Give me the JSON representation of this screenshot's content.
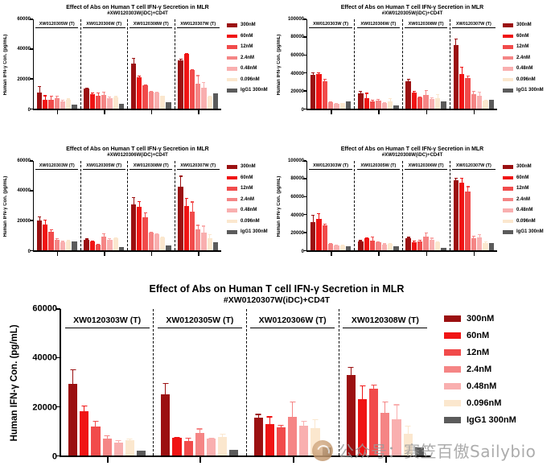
{
  "watermark": {
    "text": "公众号：赛笠百傲Sailybio",
    "logo": "circular-brand-logo"
  },
  "chart_data": [
    {
      "type": "bar",
      "title": "Effect of Abs on Human T cell IFN-γ Secretion in MLR",
      "subtitle": "#XW0120303W(iDC)+CD4T",
      "ylabel": "Human IFN-γ Con. (pg/mL)",
      "ylim": [
        0,
        60000
      ],
      "yticks": [
        0,
        20000,
        40000,
        60000
      ],
      "grid": false,
      "legend_position": "right",
      "categories": [
        "XW0120305W (T)",
        "XW0120306W (T)",
        "XW0120308W (T)",
        "XW0120307W (T)"
      ],
      "series": [
        {
          "name": "300nM",
          "color": "#9B1011",
          "values": [
            11000,
            13500,
            30500,
            32500
          ],
          "errors": [
            4000,
            700,
            3800,
            1200
          ]
        },
        {
          "name": "60nM",
          "color": "#F01414",
          "values": [
            6000,
            10000,
            21000,
            37000
          ],
          "errors": [
            3000,
            900,
            1200,
            400
          ]
        },
        {
          "name": "12nM",
          "color": "#F14B4B",
          "values": [
            6000,
            8500,
            15500,
            26200
          ],
          "errors": [
            2500,
            2200,
            900,
            500
          ]
        },
        {
          "name": "2.4nM",
          "color": "#F58585",
          "values": [
            7000,
            9200,
            11500,
            17000
          ],
          "errors": [
            1500,
            2300,
            600,
            5500
          ]
        },
        {
          "name": "0.48nM",
          "color": "#F9AFAF",
          "values": [
            5000,
            6800,
            11000,
            14000
          ],
          "errors": [
            1200,
            1500,
            500,
            3800
          ]
        },
        {
          "name": "0.096nM",
          "color": "#FBE7CE",
          "values": [
            6000,
            7500,
            8500,
            8000
          ],
          "errors": [
            800,
            900,
            400,
            700
          ]
        },
        {
          "name": "IgG1 300nM",
          "color": "#5B5B5B",
          "values": [
            2800,
            3200,
            4500,
            10200
          ],
          "errors": [
            0,
            0,
            0,
            0
          ]
        }
      ]
    },
    {
      "type": "bar",
      "title": "Effect of Abs on Human T cell IFN-γ Secretion in MLR",
      "subtitle": "#XW0120305W(iDC)+CD4T",
      "ylabel": "Human IFN-γ Con. (pg/mL)",
      "ylim": [
        0,
        100000
      ],
      "yticks": [
        0,
        20000,
        40000,
        60000,
        80000,
        100000
      ],
      "grid": false,
      "legend_position": "right",
      "categories": [
        "XW0120303W (T)",
        "XW0120306W (T)",
        "XW0120308W (T)",
        "XW0120307W (T)"
      ],
      "series": [
        {
          "name": "300nM",
          "color": "#9B1011",
          "values": [
            38000,
            17500,
            30500,
            71000
          ],
          "errors": [
            2800,
            2200,
            2700,
            7500
          ]
        },
        {
          "name": "60nM",
          "color": "#F01414",
          "values": [
            39000,
            11800,
            18200,
            39000
          ],
          "errors": [
            1800,
            5800,
            1600,
            7800
          ]
        },
        {
          "name": "12nM",
          "color": "#F14B4B",
          "values": [
            31000,
            8500,
            12800,
            33800
          ],
          "errors": [
            2200,
            1600,
            1100,
            3600
          ]
        },
        {
          "name": "2.4nM",
          "color": "#F58585",
          "values": [
            7000,
            9200,
            15500,
            16500
          ],
          "errors": [
            1200,
            1500,
            5200,
            3200
          ]
        },
        {
          "name": "0.48nM",
          "color": "#F9AFAF",
          "values": [
            5200,
            6500,
            11000,
            14200
          ],
          "errors": [
            800,
            1000,
            1600,
            4800
          ]
        },
        {
          "name": "0.096nM",
          "color": "#FBE7CE",
          "values": [
            6000,
            8000,
            12000,
            8600
          ],
          "errors": [
            700,
            3800,
            4600,
            1100
          ]
        },
        {
          "name": "IgG1 300nM",
          "color": "#5B5B5B",
          "values": [
            8000,
            3800,
            8000,
            9500
          ],
          "errors": [
            0,
            0,
            0,
            0
          ]
        }
      ]
    },
    {
      "type": "bar",
      "title": "Effect of Abs on Human T cell IFN-γ Secretion in MLR",
      "subtitle": "#XW0120306W(iDC)+CD4T",
      "ylabel": "Human IFN-γ Con. (pg/mL)",
      "ylim": [
        0,
        60000
      ],
      "yticks": [
        0,
        20000,
        40000,
        60000
      ],
      "grid": false,
      "legend_position": "right",
      "categories": [
        "XW0120303W (T)",
        "XW0120305W (T)",
        "XW0120308W (T)",
        "XW0120307W (T)"
      ],
      "series": [
        {
          "name": "300nM",
          "color": "#9B1011",
          "values": [
            20000,
            7000,
            30600,
            42500
          ],
          "errors": [
            2600,
            900,
            5200,
            7600
          ]
        },
        {
          "name": "60nM",
          "color": "#F01414",
          "values": [
            17400,
            5800,
            29400,
            30000
          ],
          "errors": [
            3200,
            700,
            3600,
            5200
          ]
        },
        {
          "name": "12nM",
          "color": "#F14B4B",
          "values": [
            12400,
            3600,
            22400,
            26000
          ],
          "errors": [
            1600,
            500,
            3100,
            6800
          ]
        },
        {
          "name": "2.4nM",
          "color": "#F58585",
          "values": [
            7000,
            9400,
            12000,
            14000
          ],
          "errors": [
            1300,
            2100,
            600,
            3100
          ]
        },
        {
          "name": "0.48nM",
          "color": "#F9AFAF",
          "values": [
            5400,
            6900,
            11000,
            12000
          ],
          "errors": [
            900,
            1300,
            500,
            4600
          ]
        },
        {
          "name": "0.096nM",
          "color": "#FBE7CE",
          "values": [
            6100,
            8000,
            8600,
            8200
          ],
          "errors": [
            700,
            900,
            400,
            2600
          ]
        },
        {
          "name": "IgG1 300nM",
          "color": "#5B5B5B",
          "values": [
            5700,
            2000,
            3000,
            5500
          ],
          "errors": [
            0,
            0,
            0,
            0
          ]
        }
      ]
    },
    {
      "type": "bar",
      "title": "Effect of Abs on Human T cell IFN-γ Secretion in MLR",
      "subtitle": "#XW0120308W(iDC)+CD4T",
      "ylabel": "Human IFN-γ Con. (pg/mL)",
      "ylim": [
        0,
        100000
      ],
      "yticks": [
        0,
        20000,
        40000,
        60000,
        80000,
        100000
      ],
      "grid": false,
      "legend_position": "right",
      "categories": [
        "XW0120303W (T)",
        "XW0120305W (T)",
        "XW0120306W (T)",
        "XW0120307W (T)"
      ],
      "series": [
        {
          "name": "300nM",
          "color": "#9B1011",
          "values": [
            31500,
            10200,
            13400,
            78000
          ],
          "errors": [
            8500,
            1100,
            1600,
            3200
          ]
        },
        {
          "name": "60nM",
          "color": "#F01414",
          "values": [
            35000,
            13200,
            9200,
            76000
          ],
          "errors": [
            6200,
            1600,
            1900,
            5200
          ]
        },
        {
          "name": "12nM",
          "color": "#F14B4B",
          "values": [
            28000,
            11000,
            10200,
            66000
          ],
          "errors": [
            1600,
            4200,
            1600,
            5800
          ]
        },
        {
          "name": "2.4nM",
          "color": "#F58585",
          "values": [
            6800,
            8600,
            15600,
            13600
          ],
          "errors": [
            900,
            1600,
            4600,
            2600
          ]
        },
        {
          "name": "0.48nM",
          "color": "#F9AFAF",
          "values": [
            5200,
            6600,
            11400,
            14000
          ],
          "errors": [
            700,
            1100,
            2600,
            4200
          ]
        },
        {
          "name": "0.096nM",
          "color": "#FBE7CE",
          "values": [
            5800,
            7000,
            8600,
            8200
          ],
          "errors": [
            700,
            900,
            1100,
            1600
          ]
        },
        {
          "name": "IgG1 300nM",
          "color": "#5B5B5B",
          "values": [
            4400,
            4400,
            2600,
            8200
          ],
          "errors": [
            0,
            0,
            0,
            0
          ]
        }
      ]
    },
    {
      "type": "bar",
      "title": "Effect of Abs on Human T cell IFN-γ Secretion in MLR",
      "subtitle": "#XW0120307W(iDC)+CD4T",
      "ylabel": "Human IFN-γ Con. (pg/mL)",
      "ylim": [
        0,
        60000
      ],
      "yticks": [
        0,
        20000,
        40000,
        60000
      ],
      "grid": false,
      "legend_position": "right",
      "categories": [
        "XW0120303W (T)",
        "XW0120305W (T)",
        "XW0120306W (T)",
        "XW0120308W (T)"
      ],
      "series": [
        {
          "name": "300nM",
          "color": "#9B1011",
          "values": [
            29200,
            25200,
            15400,
            33000
          ],
          "errors": [
            6000,
            4600,
            1600,
            3200
          ]
        },
        {
          "name": "60nM",
          "color": "#F01414",
          "values": [
            18200,
            7100,
            13000,
            23000
          ],
          "errors": [
            2200,
            400,
            3000,
            5800
          ]
        },
        {
          "name": "12nM",
          "color": "#F14B4B",
          "values": [
            12000,
            5800,
            11400,
            27500
          ],
          "errors": [
            2200,
            1600,
            1100,
            1500
          ]
        },
        {
          "name": "2.4nM",
          "color": "#F58585",
          "values": [
            7000,
            9300,
            15800,
            17500
          ],
          "errors": [
            1400,
            1800,
            6200,
            4600
          ]
        },
        {
          "name": "0.48nM",
          "color": "#F9AFAF",
          "values": [
            5300,
            6800,
            12200,
            14800
          ],
          "errors": [
            1000,
            600,
            2000,
            6200
          ]
        },
        {
          "name": "0.096nM",
          "color": "#FBE7CE",
          "values": [
            6300,
            7700,
            11200,
            8800
          ],
          "errors": [
            700,
            1300,
            3800,
            3400
          ]
        },
        {
          "name": "IgG1 300nM",
          "color": "#5B5B5B",
          "values": [
            2100,
            2300,
            3400,
            3200
          ],
          "errors": [
            0,
            0,
            0,
            0
          ]
        }
      ]
    }
  ]
}
